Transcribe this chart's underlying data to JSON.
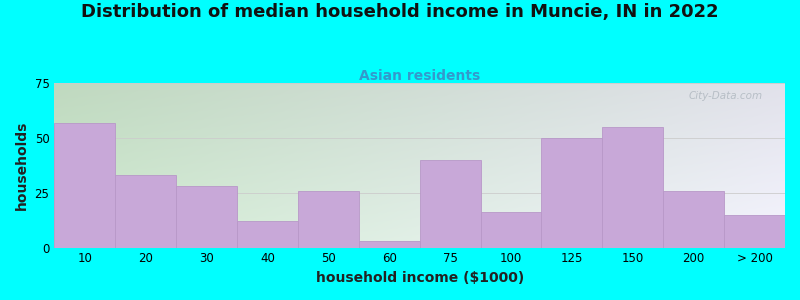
{
  "title": "Distribution of median household income in Muncie, IN in 2022",
  "subtitle": "Asian residents",
  "xlabel": "household income ($1000)",
  "ylabel": "households",
  "background_color": "#00FFFF",
  "plot_bg_top_left": "#d0ecd0",
  "plot_bg_top_right": "#f0f0f8",
  "plot_bg_bottom": "#e8f8e8",
  "bar_color": "#c8a8d8",
  "bar_edge_color": "#b898c8",
  "categories": [
    "10",
    "20",
    "30",
    "40",
    "50",
    "60",
    "75",
    "100",
    "125",
    "150",
    "200",
    "> 200"
  ],
  "values": [
    57,
    33,
    28,
    12,
    26,
    3,
    40,
    16,
    50,
    55,
    26,
    15
  ],
  "ylim": [
    0,
    75
  ],
  "yticks": [
    0,
    25,
    50,
    75
  ],
  "title_fontsize": 13,
  "subtitle_fontsize": 10,
  "axis_label_fontsize": 10,
  "tick_fontsize": 8.5,
  "watermark_text": "City-Data.com",
  "watermark_color": "#b0b8c0"
}
